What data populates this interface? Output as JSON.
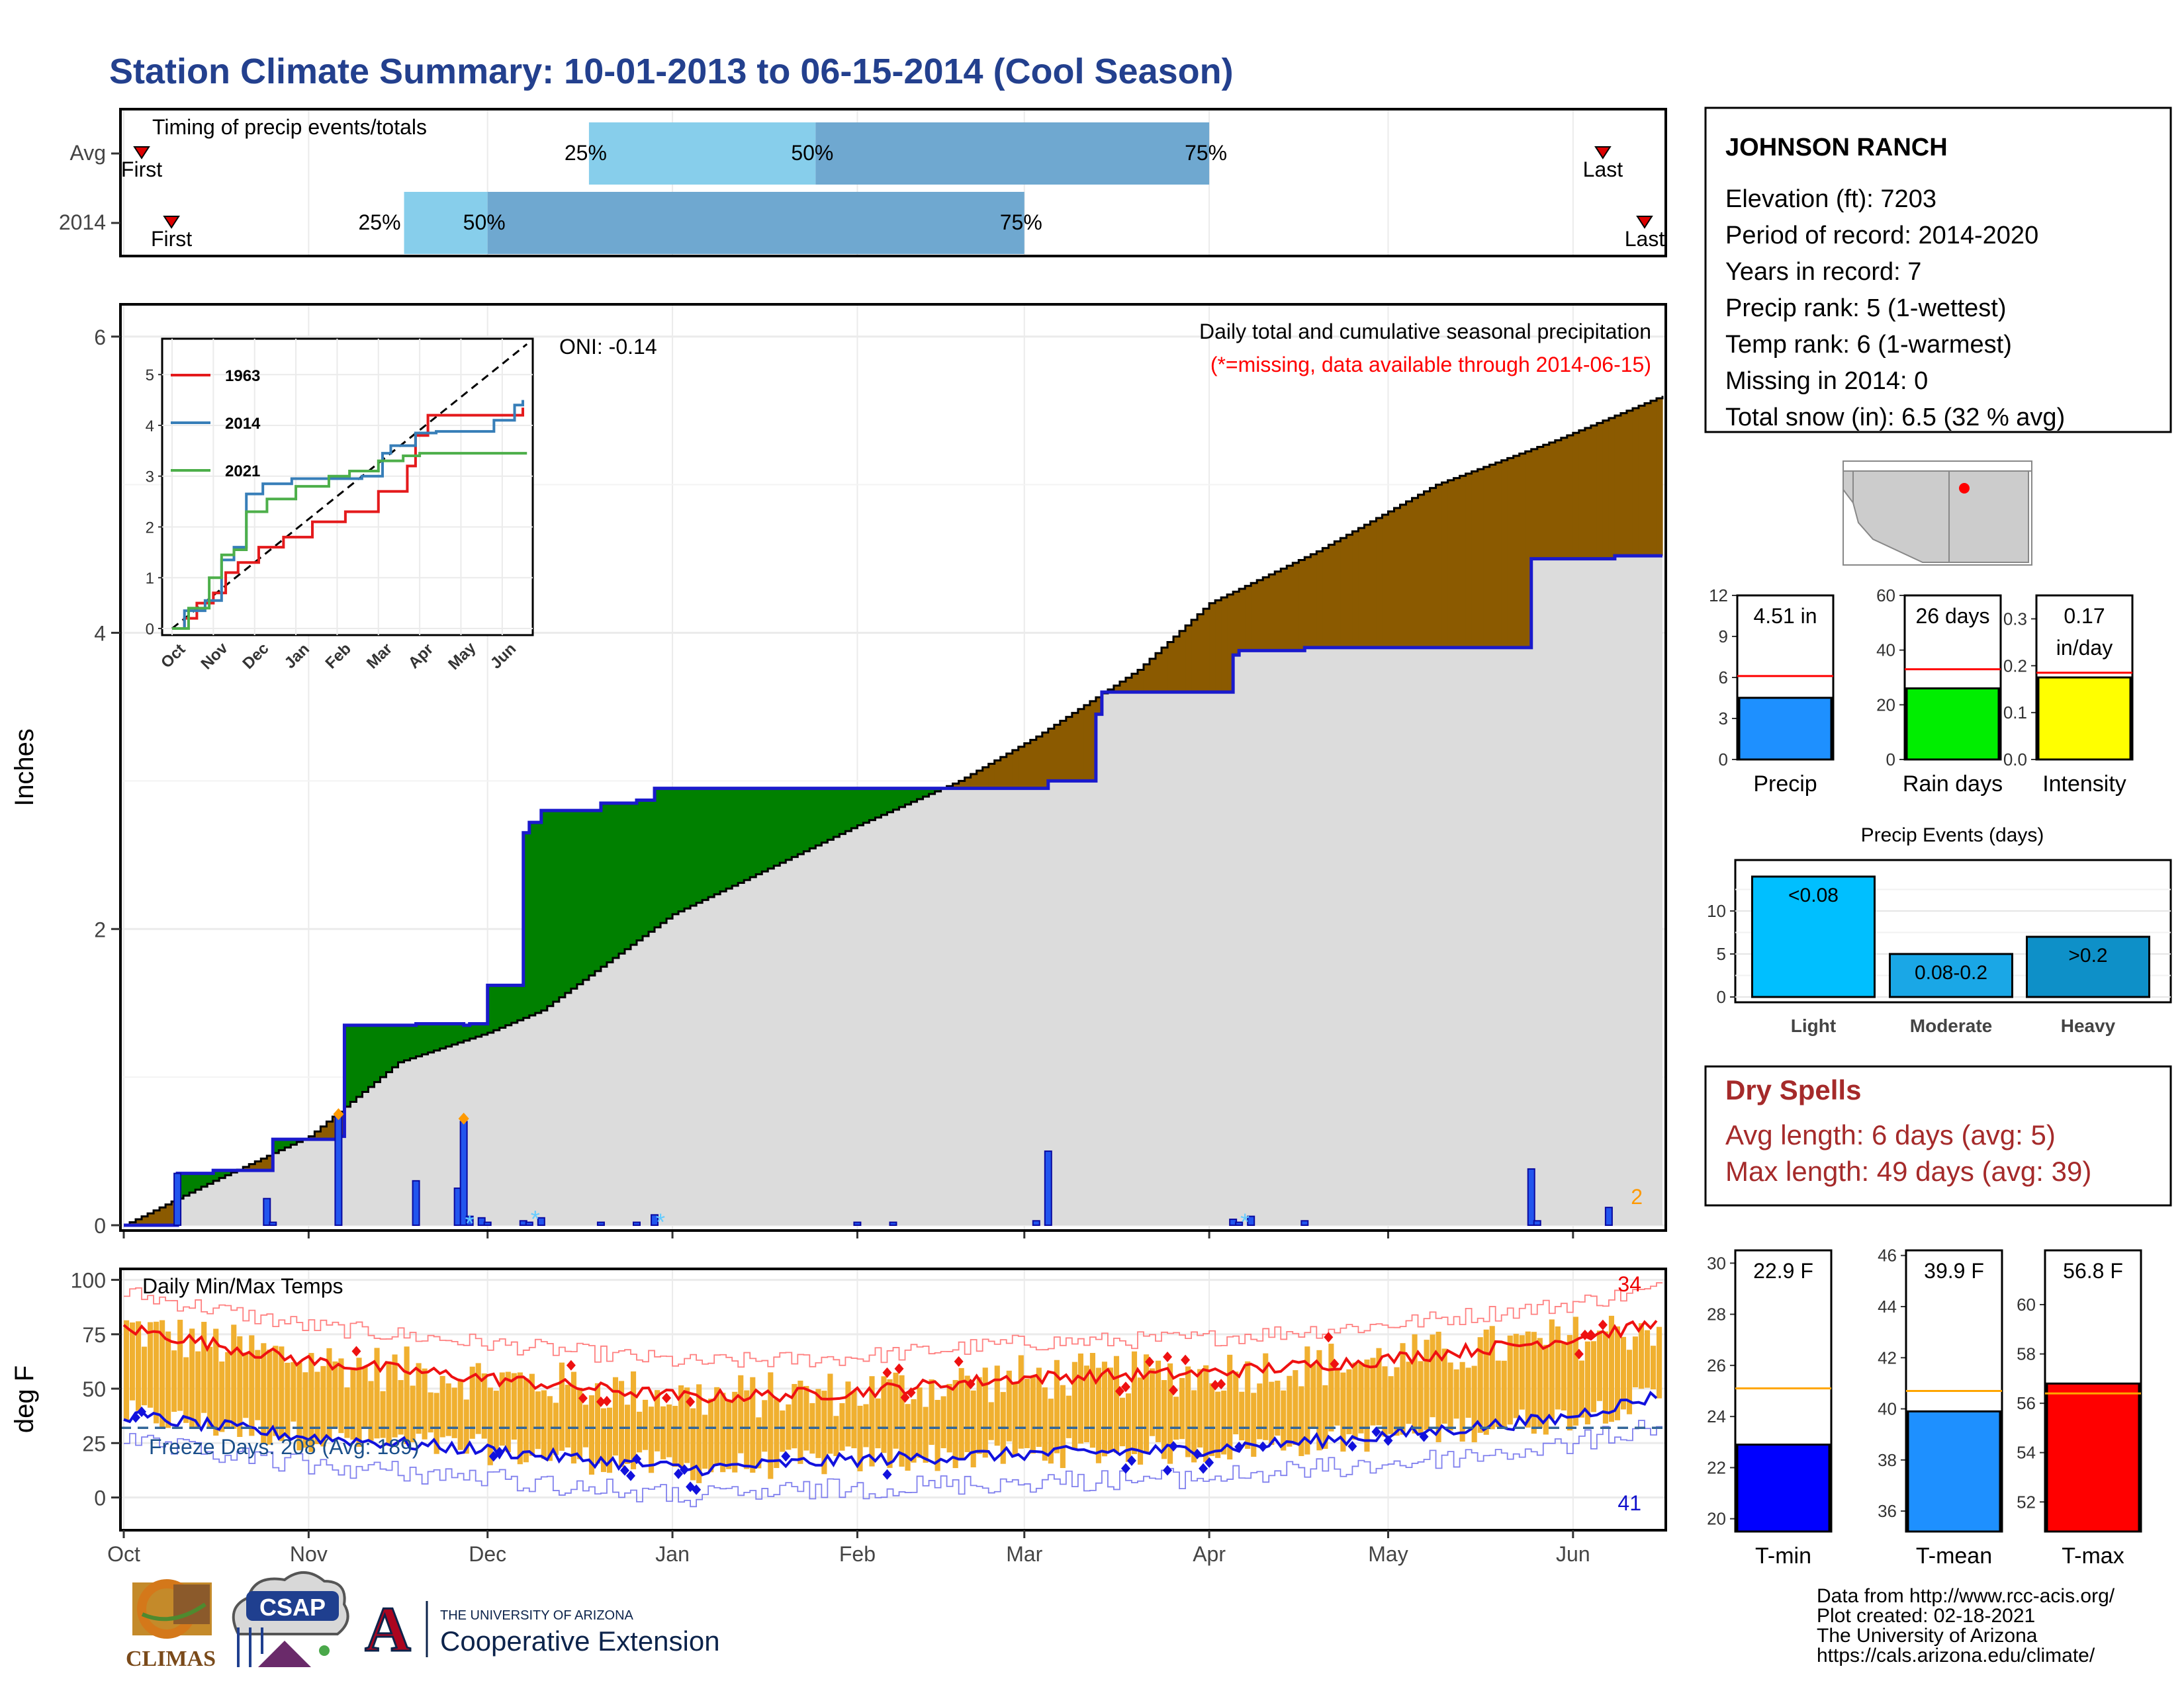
{
  "page": {
    "title": "Station Climate Summary: 10-01-2013 to 06-15-2014 (Cool Season)"
  },
  "timing": {
    "title": "Timing of precip events/totals",
    "rows": [
      {
        "label": "Avg",
        "first_label": "First",
        "last_label": "Last",
        "first": "2013-10-04",
        "last": "2014-06-06",
        "p25": "2013-12-18",
        "p50": "2014-01-25",
        "p75": "2014-04-01",
        "p25_label": "25%",
        "p50_label": "50%",
        "p75_label": "75%"
      },
      {
        "label": "2014",
        "first_label": "First",
        "last_label": "Last",
        "first": "2013-10-09",
        "last": "2014-06-13",
        "p25": "2013-11-17",
        "p50": "2013-12-01",
        "p75": "2014-03-01",
        "p25_label": "25%",
        "p50_label": "50%",
        "p75_label": "75%"
      }
    ]
  },
  "precip_panel": {
    "ylabel": "Inches",
    "oni": "ONI: -0.14",
    "caption": "Daily total and cumulative seasonal precipitation",
    "missing_note": "(*=missing, data available through 2014-06-15)",
    "count_label": "2",
    "ylim": [
      0,
      6.2
    ],
    "yticks": [
      0,
      2,
      4,
      6
    ],
    "colors": {
      "observed_line": "#1a1acc",
      "above_fill": "#008000",
      "below_fill": "#8b5a00",
      "normal_fill": "#dcdcdc",
      "daily_bar": "#2255ee",
      "snow_marker": "#ff9900",
      "missing_marker": "#66ccff"
    }
  },
  "inset": {
    "xlabels": [
      "Oct",
      "Nov",
      "Dec",
      "Jan",
      "Feb",
      "Mar",
      "Apr",
      "May",
      "Jun"
    ],
    "yticks": [
      "0",
      "1",
      "2",
      "3",
      "4",
      "5"
    ],
    "legend": [
      {
        "name": "1963",
        "color": "#e41a1c"
      },
      {
        "name": "2014",
        "color": "#377eb8"
      },
      {
        "name": "2021",
        "color": "#4daf4a"
      }
    ]
  },
  "temp_panel": {
    "ylabel": "deg F",
    "title": "Daily Min/Max Temps",
    "freeze_label": "Freeze Days: 208 (Avg: 189)",
    "max_count": "34",
    "min_count": "41",
    "yticks": [
      0,
      25,
      50,
      75,
      100
    ],
    "ylim": [
      -12,
      102
    ],
    "colors": {
      "range_bar": "#f0b030",
      "max_avg": "#ee1111",
      "min_avg": "#1111dd",
      "record_max": "#ff8080",
      "record_min": "#8080ee",
      "freeze_line": "#336699"
    }
  },
  "x_axis": {
    "labels": [
      "Oct",
      "Nov",
      "Dec",
      "Jan",
      "Feb",
      "Mar",
      "Apr",
      "May",
      "Jun"
    ]
  },
  "station": {
    "name": "JOHNSON RANCH",
    "elevation": "Elevation (ft): 7203",
    "period": "Period of record: 2014-2020",
    "years": "Years in record: 7",
    "precip_rank": "Precip rank: 5 (1-wettest)",
    "temp_rank": "Temp rank: 6 (1-warmest)",
    "missing": "Missing in 2014: 0",
    "snow": "Total snow (in): 6.5 (32 % avg)"
  },
  "mini_precip": [
    {
      "value_label": "4.51 in",
      "label": "Precip",
      "value": 4.51,
      "avg": 6.1,
      "ylim": [
        0,
        12
      ],
      "yticks": [
        "0",
        "3",
        "6",
        "9",
        "12"
      ],
      "color": "#1e90ff"
    },
    {
      "value_label": "26 days",
      "label": "Rain days",
      "value": 26,
      "avg": 33,
      "ylim": [
        0,
        60
      ],
      "yticks": [
        "0",
        "20",
        "40",
        "60"
      ],
      "color": "#00ee00"
    },
    {
      "value_label": "0.17",
      "value_label2": "in/day",
      "label": "Intensity",
      "value": 0.175,
      "avg": 0.185,
      "ylim": [
        0,
        0.35
      ],
      "yticks": [
        "0.0",
        "0.1",
        "0.2",
        "0.3"
      ],
      "color": "#ffff00"
    }
  ],
  "events": {
    "title": "Precip Events (days)",
    "ylim": [
      0,
      15
    ],
    "yticks": [
      "0",
      "5",
      "10"
    ],
    "categories": [
      "Light",
      "Moderate",
      "Heavy"
    ],
    "bar_labels": [
      "<0.08",
      "0.08-0.2",
      ">0.2"
    ],
    "values": [
      14,
      5,
      7
    ],
    "colors": [
      "#00bfff",
      "#1aa7e6",
      "#0e90c8"
    ]
  },
  "dry_spells": {
    "title": "Dry Spells",
    "avg_length": "Avg length: 6 days (avg: 5)",
    "max_length": "Max length: 49 days (avg: 39)",
    "color": "#a52a2a"
  },
  "mini_temp": [
    {
      "value_label": "22.9 F",
      "label": "T-min",
      "value": 22.9,
      "avg": 25.1,
      "ylim": [
        19.5,
        30.5
      ],
      "yticks": [
        "20",
        "22",
        "24",
        "26",
        "28",
        "30"
      ],
      "color": "#0000ff"
    },
    {
      "value_label": "39.9 F",
      "label": "T-mean",
      "value": 39.9,
      "avg": 40.7,
      "ylim": [
        35.2,
        46.2
      ],
      "yticks": [
        "36",
        "38",
        "40",
        "42",
        "44",
        "46"
      ],
      "color": "#1e90ff"
    },
    {
      "value_label": "56.8 F",
      "label": "T-max",
      "value": 56.8,
      "avg": 56.4,
      "ylim": [
        50.8,
        62.2
      ],
      "yticks": [
        "52",
        "54",
        "56",
        "58",
        "60"
      ],
      "color": "#ff0000"
    }
  ],
  "footer": {
    "line1": "Data from http://www.rcc-acis.org/",
    "line2": "Plot created: 02-18-2021",
    "line3": "The University of Arizona",
    "line4": "https://cals.arizona.edu/climate/"
  },
  "logos": {
    "climas": "CLIMAS",
    "csap": "CSAP",
    "ua_small": "THE UNIVERSITY OF ARIZONA",
    "ua_big": "Cooperative Extension",
    "ua_letter": "A"
  }
}
